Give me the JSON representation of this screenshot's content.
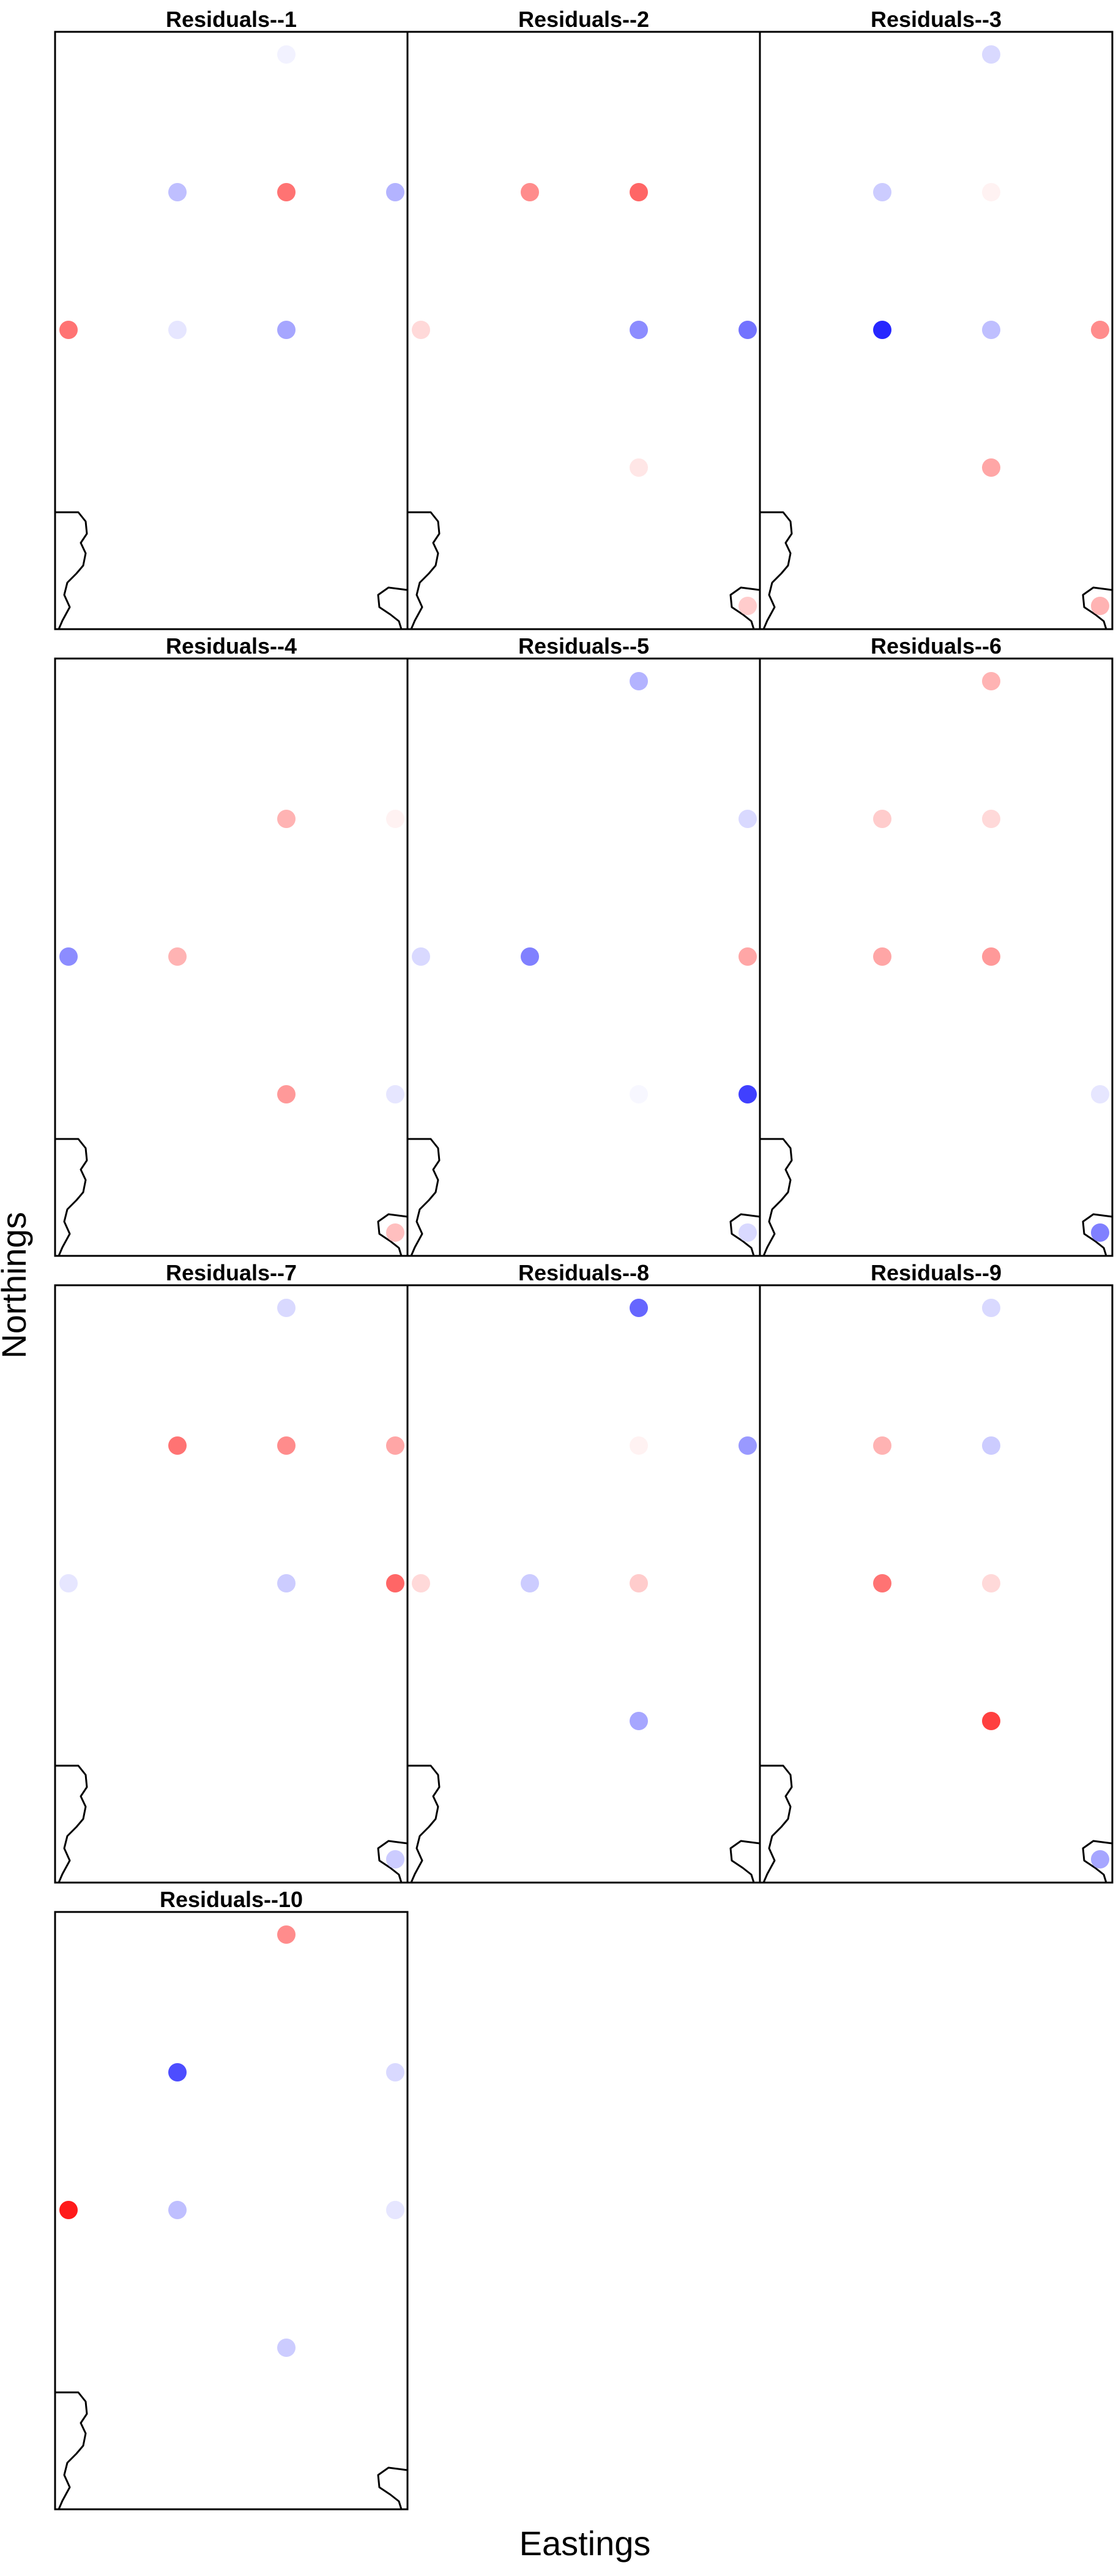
{
  "chart_data": {
    "type": "scatter",
    "xlabel": "Eastings",
    "ylabel": "Northings",
    "grid": false,
    "legend": "none",
    "colors": {
      "negative": "#0000ff",
      "positive": "#ff0000",
      "zero": "#ffffff"
    },
    "panels": [
      {
        "title": "Residuals--1",
        "points": [
          {
            "x": 3,
            "y": 1,
            "value": -0.05
          },
          {
            "x": 2,
            "y": 2,
            "value": -0.25
          },
          {
            "x": 3,
            "y": 2,
            "value": 0.55
          },
          {
            "x": 4,
            "y": 2,
            "value": -0.3
          },
          {
            "x": 1,
            "y": 3,
            "value": 0.55
          },
          {
            "x": 2,
            "y": 3,
            "value": -0.1
          },
          {
            "x": 3,
            "y": 3,
            "value": -0.35
          }
        ]
      },
      {
        "title": "Residuals--2",
        "points": [
          {
            "x": 2,
            "y": 2,
            "value": 0.45
          },
          {
            "x": 3,
            "y": 2,
            "value": 0.6
          },
          {
            "x": 1,
            "y": 3,
            "value": 0.15
          },
          {
            "x": 3,
            "y": 3,
            "value": -0.45
          },
          {
            "x": 4,
            "y": 3,
            "value": -0.55
          },
          {
            "x": 3,
            "y": 4,
            "value": 0.1
          },
          {
            "x": 4,
            "y": 5,
            "value": 0.2
          }
        ]
      },
      {
        "title": "Residuals--3",
        "points": [
          {
            "x": 3,
            "y": 1,
            "value": -0.15
          },
          {
            "x": 2,
            "y": 2,
            "value": -0.2
          },
          {
            "x": 3,
            "y": 2,
            "value": 0.05
          },
          {
            "x": 2,
            "y": 3,
            "value": -0.85
          },
          {
            "x": 3,
            "y": 3,
            "value": -0.25
          },
          {
            "x": 4,
            "y": 3,
            "value": 0.45
          },
          {
            "x": 3,
            "y": 4,
            "value": 0.35
          },
          {
            "x": 4,
            "y": 5,
            "value": 0.3
          }
        ]
      },
      {
        "title": "Residuals--4",
        "points": [
          {
            "x": 3,
            "y": 2,
            "value": 0.3
          },
          {
            "x": 4,
            "y": 2,
            "value": 0.05
          },
          {
            "x": 1,
            "y": 3,
            "value": -0.45
          },
          {
            "x": 2,
            "y": 3,
            "value": 0.3
          },
          {
            "x": 3,
            "y": 4,
            "value": 0.4
          },
          {
            "x": 4,
            "y": 4,
            "value": -0.1
          },
          {
            "x": 4,
            "y": 5,
            "value": 0.25
          }
        ]
      },
      {
        "title": "Residuals--5",
        "points": [
          {
            "x": 3,
            "y": 1,
            "value": -0.3
          },
          {
            "x": 4,
            "y": 2,
            "value": -0.15
          },
          {
            "x": 1,
            "y": 3,
            "value": -0.15
          },
          {
            "x": 2,
            "y": 3,
            "value": -0.5
          },
          {
            "x": 4,
            "y": 3,
            "value": 0.35
          },
          {
            "x": 3,
            "y": 4,
            "value": -0.03
          },
          {
            "x": 4,
            "y": 4,
            "value": -0.75
          },
          {
            "x": 4,
            "y": 5,
            "value": -0.15
          }
        ]
      },
      {
        "title": "Residuals--6",
        "points": [
          {
            "x": 3,
            "y": 1,
            "value": 0.3
          },
          {
            "x": 2,
            "y": 2,
            "value": 0.2
          },
          {
            "x": 3,
            "y": 2,
            "value": 0.15
          },
          {
            "x": 2,
            "y": 3,
            "value": 0.35
          },
          {
            "x": 3,
            "y": 3,
            "value": 0.4
          },
          {
            "x": 4,
            "y": 4,
            "value": -0.1
          },
          {
            "x": 4,
            "y": 5,
            "value": -0.5
          }
        ]
      },
      {
        "title": "Residuals--7",
        "points": [
          {
            "x": 3,
            "y": 1,
            "value": -0.15
          },
          {
            "x": 2,
            "y": 2,
            "value": 0.55
          },
          {
            "x": 3,
            "y": 2,
            "value": 0.45
          },
          {
            "x": 4,
            "y": 2,
            "value": 0.35
          },
          {
            "x": 1,
            "y": 3,
            "value": -0.1
          },
          {
            "x": 3,
            "y": 3,
            "value": -0.2
          },
          {
            "x": 4,
            "y": 3,
            "value": 0.6
          },
          {
            "x": 4,
            "y": 5,
            "value": -0.2
          }
        ]
      },
      {
        "title": "Residuals--8",
        "points": [
          {
            "x": 3,
            "y": 1,
            "value": -0.6
          },
          {
            "x": 3,
            "y": 2,
            "value": 0.05
          },
          {
            "x": 4,
            "y": 2,
            "value": -0.4
          },
          {
            "x": 1,
            "y": 3,
            "value": 0.15
          },
          {
            "x": 2,
            "y": 3,
            "value": -0.2
          },
          {
            "x": 3,
            "y": 3,
            "value": 0.2
          },
          {
            "x": 3,
            "y": 4,
            "value": -0.35
          }
        ]
      },
      {
        "title": "Residuals--9",
        "points": [
          {
            "x": 3,
            "y": 1,
            "value": -0.15
          },
          {
            "x": 2,
            "y": 2,
            "value": 0.3
          },
          {
            "x": 3,
            "y": 2,
            "value": -0.2
          },
          {
            "x": 2,
            "y": 3,
            "value": 0.55
          },
          {
            "x": 3,
            "y": 3,
            "value": 0.15
          },
          {
            "x": 3,
            "y": 4,
            "value": 0.75
          },
          {
            "x": 4,
            "y": 5,
            "value": -0.35
          }
        ]
      },
      {
        "title": "Residuals--10",
        "points": [
          {
            "x": 3,
            "y": 1,
            "value": 0.45
          },
          {
            "x": 2,
            "y": 2,
            "value": -0.7
          },
          {
            "x": 4,
            "y": 2,
            "value": -0.15
          },
          {
            "x": 1,
            "y": 3,
            "value": 0.9
          },
          {
            "x": 2,
            "y": 3,
            "value": -0.25
          },
          {
            "x": 4,
            "y": 3,
            "value": -0.1
          },
          {
            "x": 3,
            "y": 4,
            "value": -0.2
          }
        ]
      }
    ]
  }
}
